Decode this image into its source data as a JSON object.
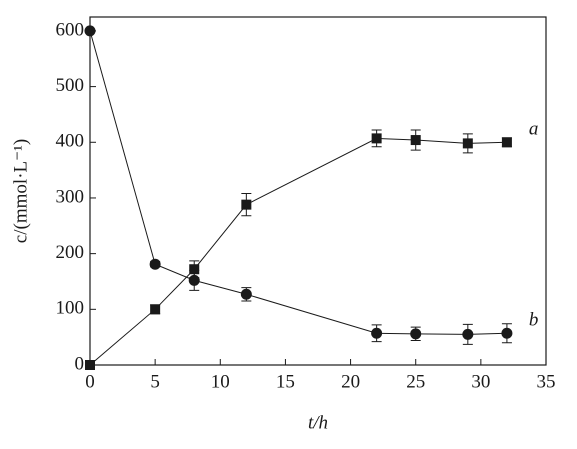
{
  "chart_data": {
    "type": "line",
    "xlabel": "t/h",
    "ylabel": "c/(mmol·L⁻¹)",
    "xlim": [
      0,
      35
    ],
    "ylim": [
      0,
      625
    ],
    "xticks": [
      0,
      5,
      10,
      15,
      20,
      25,
      30,
      35
    ],
    "yticks": [
      0,
      100,
      200,
      300,
      400,
      500,
      600
    ],
    "grid": false,
    "series": [
      {
        "name": "a",
        "color": "#1a1a1a",
        "marker": "square",
        "x": [
          0,
          5,
          8,
          12,
          22,
          25,
          29,
          32
        ],
        "values": [
          0,
          100,
          172,
          288,
          407,
          404,
          398,
          400
        ],
        "errors": [
          null,
          8,
          15,
          20,
          15,
          18,
          17,
          8
        ]
      },
      {
        "name": "b",
        "color": "#1a1a1a",
        "marker": "circle",
        "x": [
          0,
          5,
          8,
          12,
          22,
          25,
          29,
          32
        ],
        "values": [
          600,
          181,
          152,
          127,
          57,
          56,
          55,
          57
        ],
        "errors": [
          null,
          5,
          18,
          12,
          15,
          12,
          18,
          17
        ]
      }
    ]
  }
}
